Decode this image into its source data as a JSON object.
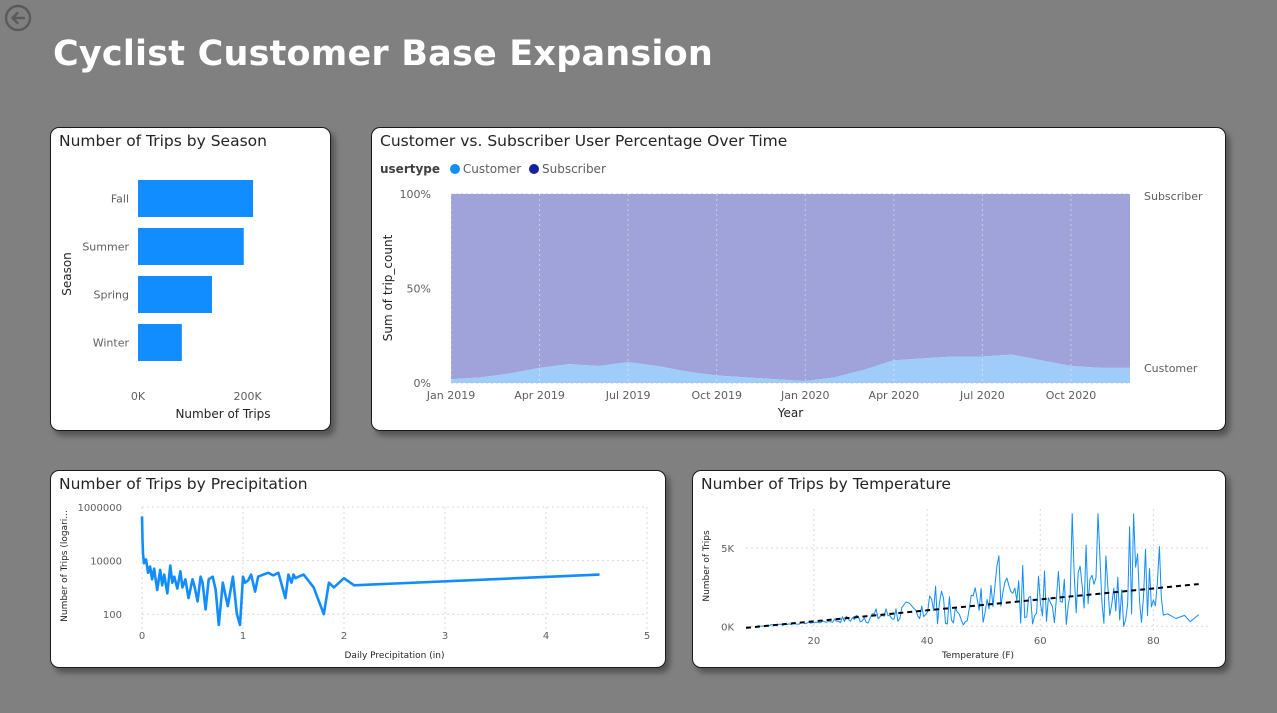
{
  "page": {
    "title": "Cyclist Customer Base Expansion",
    "back_icon": "back-arrow-icon"
  },
  "colors": {
    "background": "#808080",
    "bar": "#118DFF",
    "customer": "#118DFF",
    "subscriber": "#12239E",
    "customer_area": "#9FCCF8",
    "subscriber_area": "#A0A3DA",
    "trend": "#000000"
  },
  "chart_data": [
    {
      "type": "bar",
      "orientation": "horizontal",
      "title": "Number of Trips by Season",
      "xlabel": "Number of Trips",
      "ylabel": "Season",
      "categories": [
        "Fall",
        "Summer",
        "Spring",
        "Winter"
      ],
      "values": [
        210000,
        193000,
        135000,
        80000
      ],
      "xlim": [
        0,
        250000
      ],
      "xticks": [
        "0K",
        "200K"
      ],
      "grid": false
    },
    {
      "type": "area",
      "stacked": "100%",
      "title": "Customer vs. Subscriber User Percentage Over Time",
      "legend_title": "usertype",
      "legend_position": "top-left",
      "xlabel": "Year",
      "ylabel": "Sum of trip_count",
      "yticks": [
        "0%",
        "50%",
        "100%"
      ],
      "xticks": [
        "Jan 2019",
        "Apr 2019",
        "Jul 2019",
        "Oct 2019",
        "Jan 2020",
        "Apr 2020",
        "Jul 2020",
        "Oct 2020"
      ],
      "x": [
        "2019-01",
        "2019-02",
        "2019-03",
        "2019-04",
        "2019-05",
        "2019-06",
        "2019-07",
        "2019-08",
        "2019-09",
        "2019-10",
        "2019-11",
        "2019-12",
        "2020-01",
        "2020-02",
        "2020-03",
        "2020-04",
        "2020-05",
        "2020-06",
        "2020-07",
        "2020-08",
        "2020-09",
        "2020-10",
        "2020-11",
        "2020-12"
      ],
      "series": [
        {
          "name": "Customer",
          "values": [
            2,
            3,
            5,
            8,
            10,
            9,
            11,
            9,
            6,
            4,
            3,
            2,
            1,
            3,
            7,
            12,
            13,
            14,
            14,
            15,
            12,
            9,
            8,
            8
          ]
        },
        {
          "name": "Subscriber",
          "values": [
            98,
            97,
            95,
            92,
            90,
            91,
            89,
            91,
            94,
            96,
            97,
            98,
            99,
            97,
            93,
            88,
            87,
            86,
            86,
            85,
            88,
            91,
            92,
            92
          ]
        }
      ],
      "end_labels": [
        "Subscriber",
        "Customer"
      ],
      "grid": true
    },
    {
      "type": "line",
      "title": "Number of Trips by Precipitation",
      "xlabel": "Daily Precipitation (in)",
      "ylabel": "Number of Trips (logari...",
      "yscale": "log",
      "ylim": [
        10,
        1000000
      ],
      "yticks": [
        "1000000",
        "10000",
        "100"
      ],
      "xlim": [
        0,
        5
      ],
      "xticks": [
        "0",
        "1",
        "2",
        "3",
        "4",
        "5"
      ],
      "x": [
        0,
        0.005,
        0.01,
        0.02,
        0.04,
        0.06,
        0.08,
        0.1,
        0.12,
        0.15,
        0.18,
        0.2,
        0.22,
        0.25,
        0.28,
        0.3,
        0.32,
        0.35,
        0.38,
        0.4,
        0.43,
        0.46,
        0.5,
        0.52,
        0.55,
        0.58,
        0.6,
        0.63,
        0.66,
        0.7,
        0.73,
        0.76,
        0.8,
        0.85,
        0.9,
        0.94,
        0.97,
        1.0,
        1.02,
        1.05,
        1.08,
        1.12,
        1.15,
        1.2,
        1.25,
        1.3,
        1.35,
        1.42,
        1.45,
        1.48,
        1.5,
        1.52,
        1.55,
        1.6,
        1.7,
        1.8,
        1.85,
        1.9,
        2.0,
        2.1,
        4.53
      ],
      "y": [
        450000,
        60000,
        18000,
        8000,
        11000,
        3500,
        6000,
        2000,
        5000,
        800,
        4500,
        1200,
        3000,
        600,
        6500,
        1500,
        2500,
        900,
        4000,
        1000,
        2000,
        400,
        2000,
        1100,
        300,
        2500,
        1500,
        150,
        2000,
        2500,
        800,
        40,
        1500,
        200,
        2500,
        100,
        40,
        2500,
        1500,
        1800,
        3000,
        700,
        2500,
        3000,
        3500,
        2800,
        3500,
        400,
        3000,
        1500,
        3000,
        2200,
        2500,
        3000,
        1000,
        100,
        1500,
        1000,
        2200,
        1200,
        3000
      ],
      "grid": true
    },
    {
      "type": "line",
      "title": "Number of Trips by Temperature",
      "xlabel": "Temperature (F)",
      "ylabel": "Number of Trips",
      "xlim": [
        8,
        90
      ],
      "ylim": [
        -300,
        7500
      ],
      "xticks": [
        "20",
        "40",
        "60",
        "80"
      ],
      "yticks": [
        "0K",
        "5K"
      ],
      "trendline": {
        "x": [
          8,
          88
        ],
        "y": [
          -100,
          2700
        ],
        "style": "dashed"
      },
      "grid": true
    }
  ]
}
